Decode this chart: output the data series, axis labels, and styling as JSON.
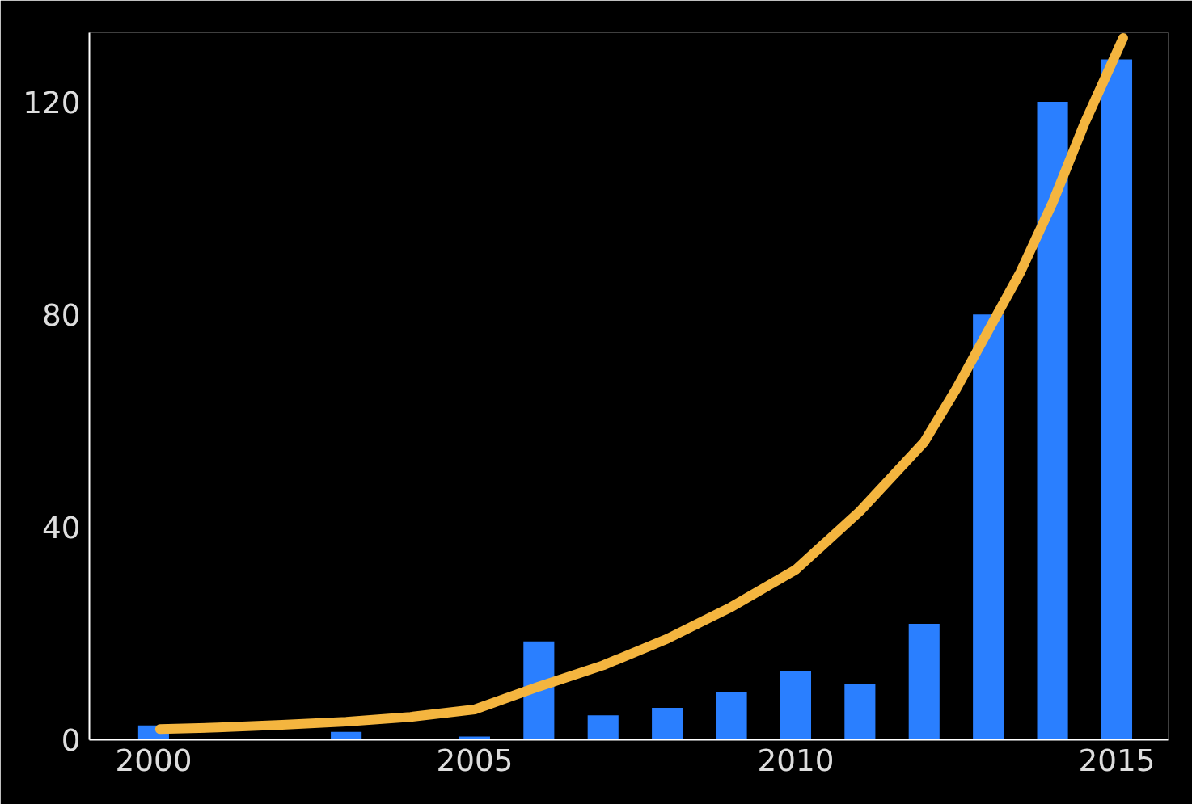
{
  "chart_data": {
    "type": "bar",
    "xlim": [
      1999,
      2015.8
    ],
    "ylim": [
      0,
      133
    ],
    "xticks": [
      2000,
      2005,
      2010,
      2015
    ],
    "yticks": [
      0,
      40,
      80,
      120
    ],
    "grid": false,
    "series": [
      {
        "color": "#2a7fff",
        "x": [
          2000,
          2001,
          2002,
          2003,
          2004,
          2005,
          2006,
          2007,
          2008,
          2009,
          2010,
          2011,
          2012,
          2013,
          2014,
          2015
        ],
        "values": [
          2.7,
          0,
          0,
          1.5,
          0,
          0.6,
          18.5,
          4.6,
          6,
          9,
          13,
          10.4,
          21.8,
          80,
          120,
          128
        ]
      },
      {
        "type": "line",
        "color": "#f4b53f",
        "x": [
          2000.1,
          2001,
          2002,
          2003,
          2004,
          2005,
          2006,
          2007,
          2008,
          2009,
          2010,
          2011,
          2012,
          2012.5,
          2013,
          2013.5,
          2014,
          2014.5,
          2015.1
        ],
        "values": [
          2,
          2.3,
          2.8,
          3.4,
          4.3,
          5.7,
          10,
          14,
          19,
          25,
          32,
          43,
          56,
          66,
          77,
          88,
          101,
          116,
          132
        ]
      }
    ]
  }
}
